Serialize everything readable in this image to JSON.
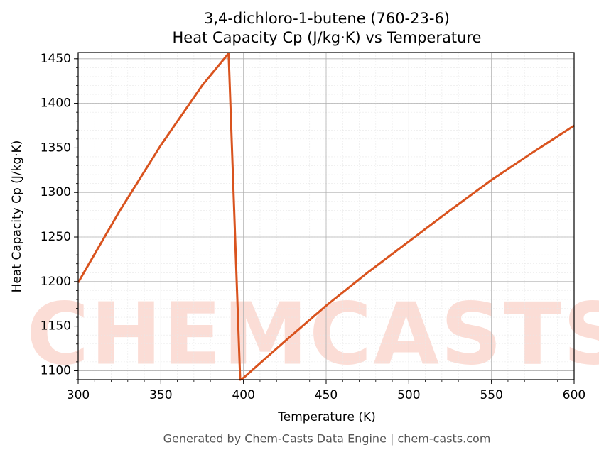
{
  "chart_data": {
    "type": "line",
    "title": "3,4-dichloro-1-butene (760-23-6)",
    "subtitle": "Heat Capacity Cp (J/kg·K) vs Temperature",
    "x_label": "Temperature (K)",
    "y_label": "Heat Capacity Cp (J/kg·K)",
    "watermark": "CHEMCASTS",
    "footer": "Generated by Chem-Casts Data Engine | chem-casts.com",
    "x": [
      300,
      325,
      350,
      375,
      391,
      398,
      400,
      425,
      450,
      475,
      500,
      525,
      550,
      575,
      600
    ],
    "series": [
      {
        "name": "Cp",
        "color": "#d9531e",
        "values": [
          1199,
          1279,
          1353,
          1420,
          1456,
          1090,
          1092,
          1133,
          1173,
          1210,
          1245,
          1280,
          1314,
          1345,
          1375
        ]
      }
    ],
    "xlim": [
      300,
      600
    ],
    "ylim": [
      1090,
      1457
    ],
    "xticks": [
      300,
      350,
      400,
      450,
      500,
      550,
      600
    ],
    "yticks": [
      1100,
      1150,
      1200,
      1250,
      1300,
      1350,
      1400,
      1450
    ],
    "grid": true,
    "minor_divisions": 5
  }
}
